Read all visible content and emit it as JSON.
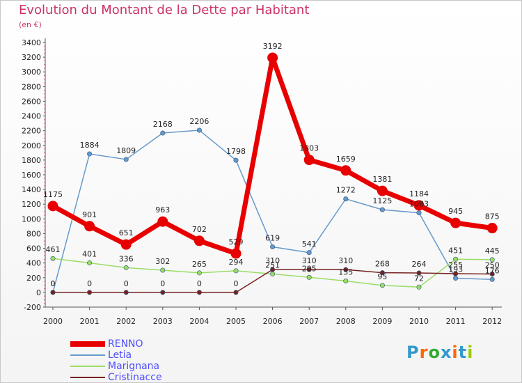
{
  "header": {
    "title": "Evolution du Montant de la Dette par Habitant",
    "subtitle": "(en €)"
  },
  "logo": {
    "text": "Proxiti"
  },
  "colors": {
    "title": "#cc3366",
    "legend_text": "#4d4dff"
  },
  "chart_data": {
    "type": "line",
    "title": "Evolution du Montant de la Dette par Habitant",
    "subtitle": "(en €)",
    "xlabel": "",
    "ylabel": "",
    "x": [
      "2000",
      "2001",
      "2002",
      "2003",
      "2004",
      "2005",
      "2006",
      "2007",
      "2008",
      "2009",
      "2010",
      "2011",
      "2012"
    ],
    "ylim": [
      -200,
      3400
    ],
    "yticks": [
      -200,
      0,
      200,
      400,
      600,
      800,
      1000,
      1200,
      1400,
      1600,
      1800,
      2000,
      2200,
      2400,
      2600,
      2800,
      3000,
      3200,
      3400
    ],
    "grid": false,
    "legend_position": "bottom-left",
    "series": [
      {
        "name": "RENNO",
        "color": "#e80000",
        "values": [
          1175,
          901,
          651,
          963,
          702,
          529,
          3192,
          1803,
          1659,
          1381,
          1184,
          945,
          875
        ],
        "labels": [
          "1175",
          "901",
          "651",
          "963",
          "702",
          "529",
          "3192",
          "1803",
          "1659",
          "1381",
          "1184",
          "945",
          "875"
        ]
      },
      {
        "name": "Letia",
        "color": "#6699cc",
        "values": [
          0,
          1884,
          1809,
          2168,
          2206,
          1798,
          619,
          541,
          1272,
          1125,
          1083,
          193,
          176
        ],
        "labels": [
          "0",
          "1884",
          "1809",
          "2168",
          "2206",
          "1798",
          "619",
          "541",
          "1272",
          "1125",
          "1083",
          "193",
          "176"
        ]
      },
      {
        "name": "Marignana",
        "color": "#99dd66",
        "values": [
          461,
          401,
          336,
          302,
          265,
          294,
          251,
          205,
          155,
          95,
          72,
          451,
          445
        ],
        "labels": [
          "461",
          "401",
          "336",
          "302",
          "265",
          "294",
          "251",
          "205",
          "155",
          "95",
          "72",
          "451",
          "445"
        ]
      },
      {
        "name": "Cristinacce",
        "color": "#772222",
        "values": [
          0,
          0,
          0,
          0,
          0,
          0,
          310,
          310,
          310,
          268,
          264,
          255,
          250
        ],
        "labels": [
          "0",
          "0",
          "0",
          "0",
          "0",
          "0",
          "310",
          "310",
          "310",
          "268",
          "264",
          "255",
          "250"
        ]
      }
    ]
  }
}
